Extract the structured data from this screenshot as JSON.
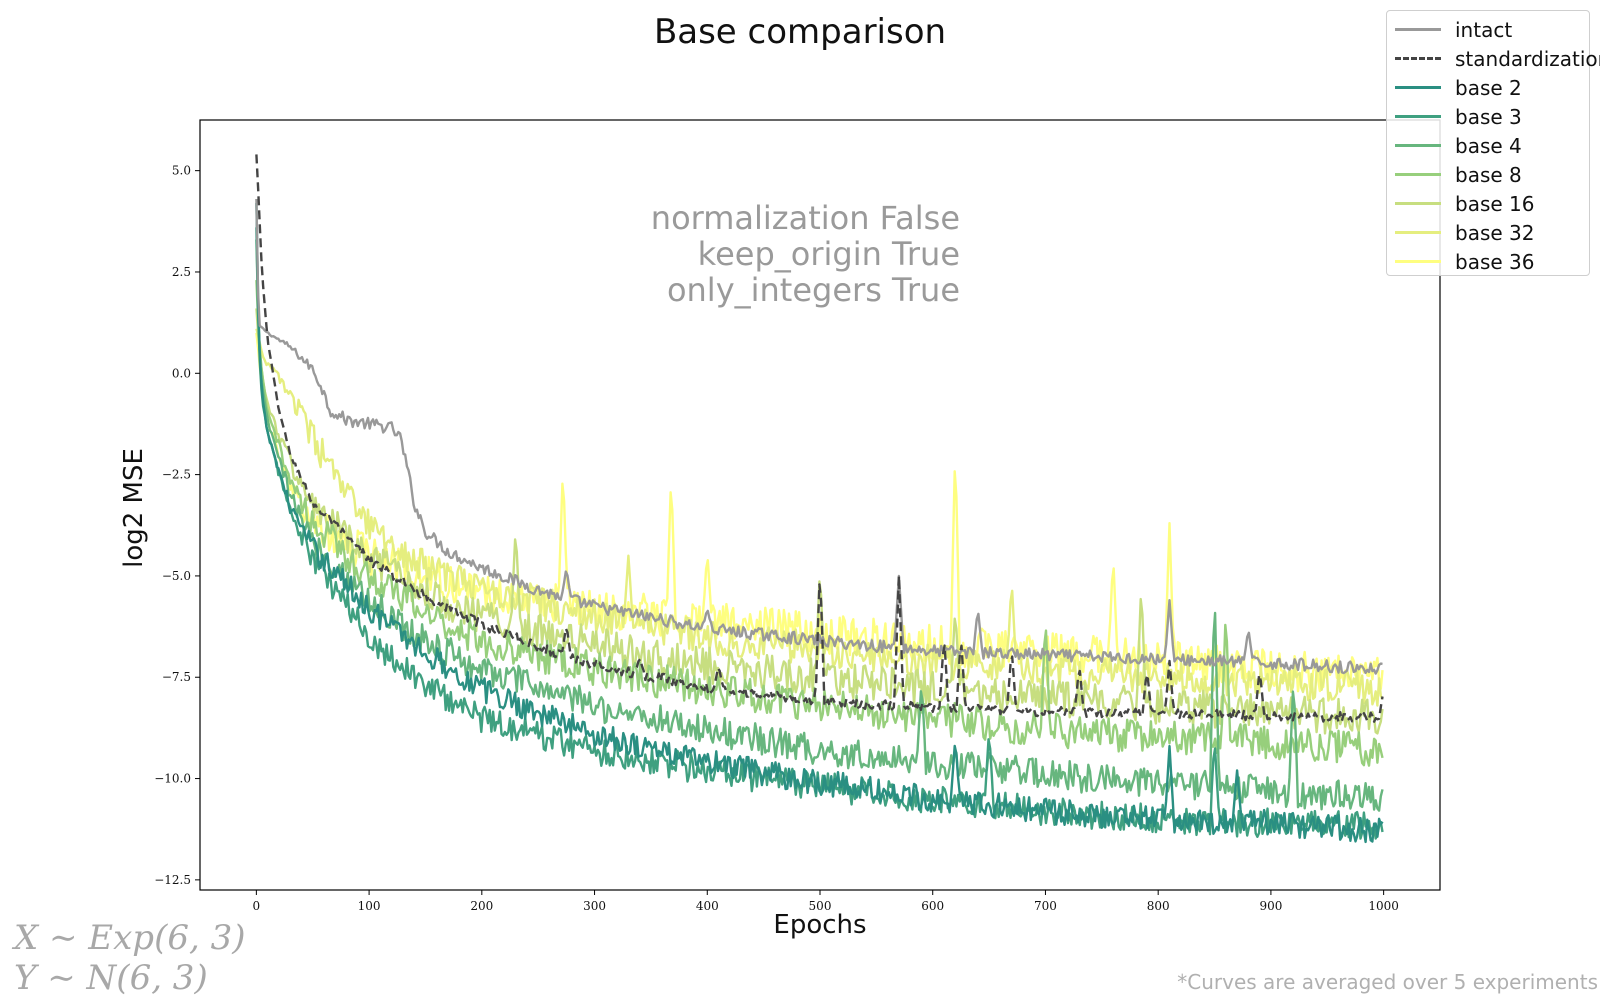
{
  "chart_data": {
    "type": "line",
    "title": "Base comparison",
    "xlabel": "Epochs",
    "ylabel": "log2 MSE",
    "xlim": [
      -50,
      1050
    ],
    "ylim": [
      -12.75,
      6.25
    ],
    "x_ticks": [
      0,
      100,
      200,
      300,
      400,
      500,
      600,
      700,
      800,
      900,
      1000
    ],
    "y_ticks": [
      5.0,
      2.5,
      0.0,
      -2.5,
      -5.0,
      -7.5,
      -10.0,
      -12.5
    ],
    "y_tick_labels": [
      "5.0",
      "2.5",
      "0.0",
      "−2.5",
      "−5.0",
      "−7.5",
      "−10.0",
      "−12.5"
    ],
    "grid": false,
    "legend_position": "top-right",
    "annotation_lines": [
      "normalization False",
      "keep_origin True",
      "only_integers True"
    ],
    "distribution_lines": [
      "X ∼ Exp(6, 3)",
      "Y ∼ N(6, 3)"
    ],
    "footnote": "*Curves are averaged over 5 experiments",
    "series": [
      {
        "name": "intact",
        "color": "#999999",
        "style": "solid",
        "noise": 0.15,
        "points": [
          [
            0,
            4.3
          ],
          [
            2,
            1.2
          ],
          [
            10,
            1.0
          ],
          [
            30,
            0.65
          ],
          [
            50,
            0.1
          ],
          [
            58,
            -0.35
          ],
          [
            65,
            -0.9
          ],
          [
            80,
            -1.15
          ],
          [
            100,
            -1.25
          ],
          [
            120,
            -1.35
          ],
          [
            128,
            -1.6
          ],
          [
            135,
            -2.5
          ],
          [
            140,
            -3.2
          ],
          [
            150,
            -3.9
          ],
          [
            170,
            -4.4
          ],
          [
            200,
            -4.8
          ],
          [
            250,
            -5.35
          ],
          [
            300,
            -5.75
          ],
          [
            400,
            -6.3
          ],
          [
            500,
            -6.6
          ],
          [
            600,
            -6.85
          ],
          [
            700,
            -6.95
          ],
          [
            800,
            -7.05
          ],
          [
            900,
            -7.15
          ],
          [
            1000,
            -7.3
          ]
        ],
        "spikes": [
          [
            275,
            -4.8
          ],
          [
            400,
            -5.8
          ],
          [
            570,
            -5.0
          ],
          [
            640,
            -5.8
          ],
          [
            810,
            -5.6
          ],
          [
            880,
            -6.3
          ]
        ]
      },
      {
        "name": "standardization",
        "color": "#444444",
        "style": "dashed",
        "noise": 0.12,
        "points": [
          [
            0,
            5.4
          ],
          [
            2,
            4.3
          ],
          [
            5,
            2.5
          ],
          [
            10,
            0.8
          ],
          [
            20,
            -0.9
          ],
          [
            30,
            -2.0
          ],
          [
            50,
            -3.2
          ],
          [
            100,
            -4.6
          ],
          [
            150,
            -5.5
          ],
          [
            200,
            -6.2
          ],
          [
            250,
            -6.75
          ],
          [
            300,
            -7.2
          ],
          [
            400,
            -7.75
          ],
          [
            500,
            -8.1
          ],
          [
            600,
            -8.25
          ],
          [
            700,
            -8.35
          ],
          [
            800,
            -8.4
          ],
          [
            900,
            -8.45
          ],
          [
            1000,
            -8.5
          ]
        ],
        "spikes": [
          [
            275,
            -6.2
          ],
          [
            340,
            -7.0
          ],
          [
            410,
            -7.2
          ],
          [
            500,
            -4.8
          ],
          [
            570,
            -5.0
          ],
          [
            610,
            -6.5
          ],
          [
            625,
            -6.5
          ],
          [
            670,
            -6.8
          ],
          [
            730,
            -7.2
          ],
          [
            790,
            -7.3
          ],
          [
            810,
            -7.1
          ],
          [
            890,
            -7.3
          ],
          [
            1000,
            -7.8
          ]
        ]
      },
      {
        "name": "base 2",
        "color": "#2a8f82",
        "style": "solid",
        "noise": 0.32,
        "points": [
          [
            0,
            4.2
          ],
          [
            2,
            1.0
          ],
          [
            5,
            -0.5
          ],
          [
            10,
            -1.5
          ],
          [
            30,
            -3.3
          ],
          [
            50,
            -4.3
          ],
          [
            100,
            -5.8
          ],
          [
            150,
            -6.9
          ],
          [
            200,
            -7.8
          ],
          [
            300,
            -8.9
          ],
          [
            400,
            -9.6
          ],
          [
            500,
            -10.1
          ],
          [
            600,
            -10.5
          ],
          [
            700,
            -10.8
          ],
          [
            800,
            -11.0
          ],
          [
            900,
            -11.1
          ],
          [
            1000,
            -11.3
          ]
        ],
        "spikes": [
          [
            620,
            -9.0
          ],
          [
            810,
            -9.2
          ],
          [
            870,
            -9.8
          ]
        ]
      },
      {
        "name": "base 3",
        "color": "#3fa080",
        "style": "solid",
        "noise": 0.36,
        "points": [
          [
            0,
            3.6
          ],
          [
            2,
            0.8
          ],
          [
            5,
            -0.6
          ],
          [
            10,
            -1.5
          ],
          [
            30,
            -3.4
          ],
          [
            50,
            -4.6
          ],
          [
            100,
            -6.5
          ],
          [
            150,
            -7.7
          ],
          [
            200,
            -8.5
          ],
          [
            300,
            -9.3
          ],
          [
            400,
            -9.8
          ],
          [
            500,
            -10.2
          ],
          [
            600,
            -10.5
          ],
          [
            700,
            -10.8
          ],
          [
            800,
            -11.0
          ],
          [
            900,
            -11.1
          ],
          [
            1000,
            -11.2
          ]
        ],
        "spikes": [
          [
            650,
            -8.8
          ],
          [
            850,
            -9.0
          ]
        ]
      },
      {
        "name": "base 4",
        "color": "#67b67e",
        "style": "solid",
        "noise": 0.38,
        "points": [
          [
            0,
            3.3
          ],
          [
            2,
            0.9
          ],
          [
            5,
            -0.3
          ],
          [
            10,
            -1.2
          ],
          [
            30,
            -3.0
          ],
          [
            50,
            -4.2
          ],
          [
            100,
            -5.6
          ],
          [
            150,
            -6.6
          ],
          [
            200,
            -7.3
          ],
          [
            300,
            -8.2
          ],
          [
            400,
            -8.8
          ],
          [
            500,
            -9.3
          ],
          [
            600,
            -9.6
          ],
          [
            700,
            -9.9
          ],
          [
            800,
            -10.1
          ],
          [
            900,
            -10.3
          ],
          [
            1000,
            -10.5
          ]
        ],
        "spikes": [
          [
            590,
            -7.6
          ],
          [
            850,
            -5.3
          ],
          [
            920,
            -7.5
          ]
        ]
      },
      {
        "name": "base 8",
        "color": "#97cf7c",
        "style": "solid",
        "noise": 0.42,
        "points": [
          [
            0,
            2.3
          ],
          [
            2,
            1.0
          ],
          [
            5,
            0.0
          ],
          [
            10,
            -1.0
          ],
          [
            30,
            -2.6
          ],
          [
            50,
            -3.7
          ],
          [
            100,
            -5.0
          ],
          [
            150,
            -5.9
          ],
          [
            200,
            -6.6
          ],
          [
            300,
            -7.3
          ],
          [
            400,
            -7.8
          ],
          [
            500,
            -8.2
          ],
          [
            600,
            -8.5
          ],
          [
            700,
            -8.8
          ],
          [
            800,
            -9.0
          ],
          [
            900,
            -9.1
          ],
          [
            1000,
            -9.3
          ]
        ],
        "spikes": [
          [
            700,
            -6.0
          ],
          [
            860,
            -5.8
          ]
        ]
      },
      {
        "name": "base 16",
        "color": "#c7de80",
        "style": "solid",
        "noise": 0.45,
        "points": [
          [
            0,
            1.6
          ],
          [
            2,
            0.8
          ],
          [
            5,
            0.0
          ],
          [
            10,
            -0.8
          ],
          [
            30,
            -2.2
          ],
          [
            50,
            -3.3
          ],
          [
            100,
            -4.6
          ],
          [
            150,
            -5.4
          ],
          [
            200,
            -6.0
          ],
          [
            300,
            -6.7
          ],
          [
            400,
            -7.2
          ],
          [
            500,
            -7.5
          ],
          [
            600,
            -7.8
          ],
          [
            700,
            -8.0
          ],
          [
            800,
            -8.2
          ],
          [
            900,
            -8.4
          ],
          [
            1000,
            -8.5
          ]
        ],
        "spikes": [
          [
            230,
            -3.8
          ],
          [
            500,
            -4.8
          ],
          [
            620,
            -5.8
          ],
          [
            785,
            -5.2
          ]
        ]
      },
      {
        "name": "base 32",
        "color": "#e5ee7f",
        "style": "solid",
        "noise": 0.42,
        "points": [
          [
            0,
            1.1
          ],
          [
            5,
            0.5
          ],
          [
            10,
            0.2
          ],
          [
            20,
            -0.1
          ],
          [
            30,
            -0.5
          ],
          [
            50,
            -1.6
          ],
          [
            75,
            -2.8
          ],
          [
            100,
            -3.8
          ],
          [
            150,
            -4.8
          ],
          [
            200,
            -5.3
          ],
          [
            300,
            -6.0
          ],
          [
            400,
            -6.5
          ],
          [
            500,
            -6.8
          ],
          [
            600,
            -7.1
          ],
          [
            700,
            -7.3
          ],
          [
            800,
            -7.5
          ],
          [
            900,
            -7.6
          ],
          [
            1000,
            -7.8
          ]
        ],
        "spikes": [
          [
            330,
            -4.5
          ],
          [
            670,
            -5.1
          ]
        ]
      },
      {
        "name": "base 36",
        "color": "#fefe80",
        "style": "solid",
        "noise": 0.5,
        "points": [
          [
            0,
            1.0
          ],
          [
            2,
            0.5
          ],
          [
            5,
            -0.4
          ],
          [
            10,
            -1.2
          ],
          [
            30,
            -2.8
          ],
          [
            50,
            -3.8
          ],
          [
            100,
            -4.5
          ],
          [
            150,
            -5.0
          ],
          [
            200,
            -5.4
          ],
          [
            300,
            -5.8
          ],
          [
            400,
            -6.1
          ],
          [
            500,
            -6.4
          ],
          [
            600,
            -6.7
          ],
          [
            700,
            -6.9
          ],
          [
            800,
            -7.1
          ],
          [
            900,
            -7.3
          ],
          [
            1000,
            -7.5
          ]
        ],
        "spikes": [
          [
            272,
            -2.3
          ],
          [
            368,
            -2.5
          ],
          [
            620,
            -1.8
          ],
          [
            810,
            -3.7
          ],
          [
            760,
            -4.5
          ],
          [
            400,
            -4.4
          ]
        ]
      }
    ]
  }
}
